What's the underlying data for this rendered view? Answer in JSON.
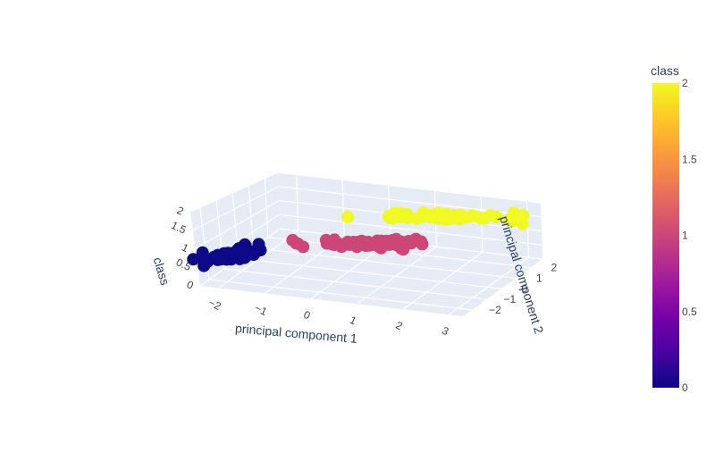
{
  "chart_data": {
    "type": "scatter3d",
    "title": "",
    "axes": {
      "x": {
        "label": "principal component 1",
        "range": [
          -2.4,
          3.3
        ],
        "ticks": [
          -2,
          -1,
          0,
          1,
          2,
          3
        ],
        "tick_labels": [
          "−2",
          "−1",
          "0",
          "1",
          "2",
          "3"
        ]
      },
      "y": {
        "label": "principal component 2",
        "range": [
          -2.6,
          2.8
        ],
        "ticks": [
          -2,
          -1,
          0,
          1,
          2
        ],
        "tick_labels": [
          "−2",
          "−1",
          "0",
          "1",
          "2"
        ]
      },
      "z": {
        "label": "class",
        "range": [
          0,
          2
        ],
        "ticks": [
          0,
          0.5,
          1,
          1.5,
          2
        ],
        "tick_labels": [
          "0",
          "0.5",
          "1",
          "1.5",
          "2"
        ]
      }
    },
    "grid": true,
    "colorbar": {
      "title": "class",
      "range": [
        0,
        2
      ],
      "ticks": [
        0,
        0.5,
        1,
        1.5,
        2
      ],
      "tick_labels": [
        "0",
        "0.5",
        "1",
        "1.5",
        "2"
      ],
      "colorscale": [
        "#0d0887",
        "#46039f",
        "#7201a8",
        "#9c179e",
        "#bd3786",
        "#d8576b",
        "#ed7953",
        "#fb9f3a",
        "#fdca26",
        "#f0f921"
      ]
    },
    "series": [
      {
        "class": 0,
        "color": "#0d0887",
        "points": [
          [
            -2.7,
            0.32,
            0
          ],
          [
            -2.73,
            -0.18,
            0
          ],
          [
            -2.89,
            -0.14,
            0
          ],
          [
            -2.75,
            -0.32,
            0
          ],
          [
            -2.73,
            0.33,
            0
          ],
          [
            -2.28,
            0.74,
            0
          ],
          [
            -2.82,
            -0.09,
            0
          ],
          [
            -2.63,
            0.16,
            0
          ],
          [
            -2.89,
            -0.58,
            0
          ],
          [
            -2.67,
            -0.11,
            0
          ],
          [
            -2.51,
            0.65,
            0
          ],
          [
            -2.61,
            0.02,
            0
          ],
          [
            -2.79,
            -0.24,
            0
          ],
          [
            -3.22,
            -0.51,
            0
          ],
          [
            -2.64,
            1.18,
            0
          ],
          [
            -2.39,
            1.34,
            0
          ],
          [
            -2.62,
            0.81,
            0
          ],
          [
            -2.65,
            0.31,
            0
          ],
          [
            -2.2,
            0.87,
            0
          ],
          [
            -2.59,
            0.51,
            0
          ],
          [
            -2.31,
            0.39,
            0
          ],
          [
            -2.54,
            0.43,
            0
          ],
          [
            -3.22,
            0.13,
            0
          ],
          [
            -2.3,
            0.1,
            0
          ],
          [
            -2.36,
            -0.04,
            0
          ],
          [
            -2.51,
            -0.15,
            0
          ],
          [
            -2.47,
            0.14,
            0
          ],
          [
            -2.56,
            0.37,
            0
          ],
          [
            -2.64,
            0.31,
            0
          ],
          [
            -2.63,
            -0.19,
            0
          ],
          [
            -2.59,
            -0.2,
            0
          ],
          [
            -2.41,
            0.41,
            0
          ],
          [
            -2.65,
            0.81,
            0
          ],
          [
            -2.6,
            1.1,
            0
          ],
          [
            -2.67,
            -0.12,
            0
          ],
          [
            -2.87,
            0.07,
            0
          ],
          [
            -2.63,
            0.6,
            0
          ],
          [
            -2.8,
            0.27,
            0
          ],
          [
            -2.99,
            -0.49,
            0
          ],
          [
            -2.59,
            0.23,
            0
          ],
          [
            -2.77,
            0.26,
            0
          ],
          [
            -2.85,
            -0.94,
            0
          ],
          [
            -3.0,
            -0.34,
            0
          ],
          [
            -2.41,
            0.19,
            0
          ],
          [
            -2.21,
            0.44,
            0
          ],
          [
            -2.71,
            -0.25,
            0
          ],
          [
            -2.54,
            0.5,
            0
          ],
          [
            -2.84,
            -0.23,
            0
          ],
          [
            -2.54,
            0.58,
            0
          ],
          [
            -2.7,
            0.11,
            0
          ]
        ]
      },
      {
        "class": 1,
        "color": "#cc4778",
        "points": [
          [
            1.28,
            0.69,
            1
          ],
          [
            0.93,
            0.32,
            1
          ],
          [
            1.46,
            0.5,
            1
          ],
          [
            0.18,
            -0.83,
            1
          ],
          [
            1.09,
            0.08,
            1
          ],
          [
            0.64,
            -0.42,
            1
          ],
          [
            1.1,
            0.28,
            1
          ],
          [
            -0.75,
            -1.0,
            1
          ],
          [
            1.04,
            0.23,
            1
          ],
          [
            -0.01,
            -0.72,
            1
          ],
          [
            -0.51,
            -1.26,
            1
          ],
          [
            0.51,
            -0.1,
            1
          ],
          [
            0.26,
            -0.55,
            1
          ],
          [
            0.98,
            -0.12,
            1
          ],
          [
            -0.17,
            -0.25,
            1
          ],
          [
            0.93,
            0.47,
            1
          ],
          [
            0.66,
            -0.35,
            1
          ],
          [
            0.23,
            -0.33,
            1
          ],
          [
            0.94,
            -0.54,
            1
          ],
          [
            0.04,
            -0.58,
            1
          ],
          [
            1.12,
            -0.08,
            1
          ],
          [
            0.36,
            -0.07,
            1
          ],
          [
            1.3,
            -0.33,
            1
          ],
          [
            0.92,
            -0.18,
            1
          ],
          [
            0.71,
            0.15,
            1
          ],
          [
            0.9,
            0.33,
            1
          ],
          [
            1.33,
            0.24,
            1
          ],
          [
            1.56,
            0.27,
            1
          ],
          [
            0.81,
            -0.16,
            1
          ],
          [
            -0.31,
            -0.37,
            1
          ],
          [
            -0.07,
            -0.7,
            1
          ],
          [
            -0.19,
            -0.68,
            1
          ],
          [
            0.14,
            -0.31,
            1
          ],
          [
            1.38,
            -0.42,
            1
          ],
          [
            0.59,
            -0.48,
            1
          ],
          [
            0.81,
            0.19,
            1
          ],
          [
            1.22,
            0.41,
            1
          ],
          [
            0.81,
            -0.37,
            1
          ],
          [
            0.25,
            -0.27,
            1
          ],
          [
            0.16,
            -0.68,
            1
          ],
          [
            0.46,
            -0.67,
            1
          ],
          [
            0.89,
            -0.03,
            1
          ],
          [
            0.23,
            -0.4,
            1
          ],
          [
            -0.71,
            -1.01,
            1
          ],
          [
            0.36,
            -0.5,
            1
          ],
          [
            0.33,
            -0.21,
            1
          ],
          [
            0.38,
            -0.29,
            1
          ],
          [
            0.64,
            0.11,
            1
          ],
          [
            -0.91,
            -0.75,
            1
          ],
          [
            0.3,
            -0.35,
            1
          ]
        ]
      },
      {
        "class": 2,
        "color": "#f0f921",
        "points": [
          [
            2.53,
            -0.01,
            2
          ],
          [
            1.41,
            -0.57,
            2
          ],
          [
            2.62,
            0.34,
            2
          ],
          [
            1.97,
            -0.18,
            2
          ],
          [
            2.35,
            -0.04,
            2
          ],
          [
            3.4,
            0.55,
            2
          ],
          [
            0.52,
            -1.19,
            2
          ],
          [
            2.93,
            0.35,
            2
          ],
          [
            2.32,
            -0.24,
            2
          ],
          [
            2.92,
            0.78,
            2
          ],
          [
            1.66,
            0.24,
            2
          ],
          [
            1.8,
            -0.22,
            2
          ],
          [
            2.17,
            0.22,
            2
          ],
          [
            1.34,
            -0.78,
            2
          ],
          [
            1.59,
            -0.54,
            2
          ],
          [
            1.9,
            0.12,
            2
          ],
          [
            1.95,
            0.04,
            2
          ],
          [
            3.49,
            1.18,
            2
          ],
          [
            3.8,
            0.26,
            2
          ],
          [
            1.3,
            -0.76,
            2
          ],
          [
            2.43,
            0.38,
            2
          ],
          [
            1.2,
            -0.61,
            2
          ],
          [
            3.5,
            0.46,
            2
          ],
          [
            1.39,
            -0.2,
            2
          ],
          [
            2.28,
            0.33,
            2
          ],
          [
            2.61,
            0.56,
            2
          ],
          [
            1.26,
            -0.18,
            2
          ],
          [
            1.29,
            -0.12,
            2
          ],
          [
            2.12,
            -0.21,
            2
          ],
          [
            2.39,
            0.46,
            2
          ],
          [
            2.84,
            0.38,
            2
          ],
          [
            3.23,
            1.37,
            2
          ],
          [
            2.16,
            -0.22,
            2
          ],
          [
            1.44,
            -0.14,
            2
          ],
          [
            1.78,
            -0.5,
            2
          ],
          [
            3.08,
            0.69,
            2
          ],
          [
            2.14,
            0.14,
            2
          ],
          [
            1.9,
            0.05,
            2
          ],
          [
            1.17,
            -0.16,
            2
          ],
          [
            2.11,
            0.37,
            2
          ],
          [
            2.31,
            0.18,
            2
          ],
          [
            1.92,
            0.41,
            2
          ],
          [
            1.41,
            -0.57,
            2
          ],
          [
            2.56,
            0.28,
            2
          ],
          [
            2.42,
            0.3,
            2
          ],
          [
            1.94,
            0.19,
            2
          ],
          [
            1.53,
            -0.38,
            2
          ],
          [
            1.76,
            0.08,
            2
          ],
          [
            1.9,
            0.12,
            2
          ],
          [
            1.39,
            -0.28,
            2
          ]
        ]
      }
    ]
  }
}
